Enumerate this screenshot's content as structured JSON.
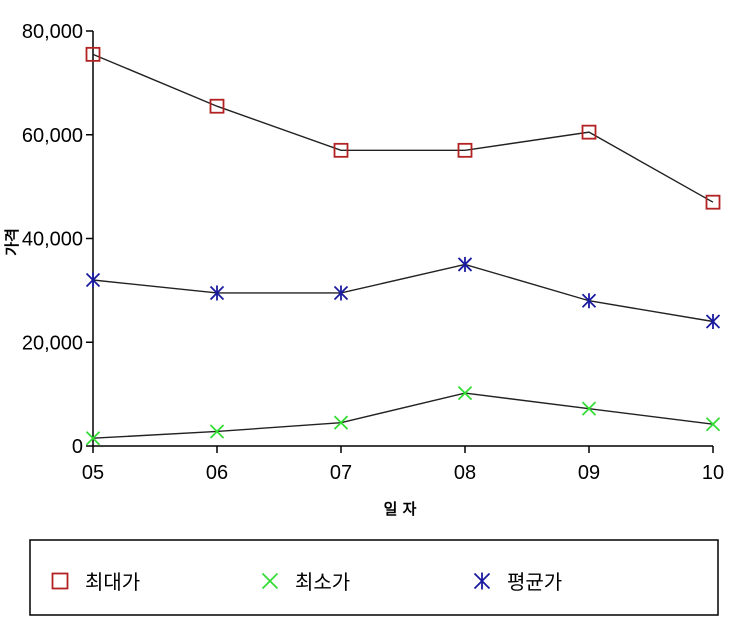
{
  "chart_data": {
    "type": "line",
    "xlabel": "일 자",
    "ylabel": "가격",
    "categories": [
      "05",
      "06",
      "07",
      "08",
      "09",
      "10"
    ],
    "ylim": [
      0,
      80000
    ],
    "yticks": [
      0,
      20000,
      40000,
      60000,
      80000
    ],
    "ytick_labels": [
      "0",
      "20,000",
      "40,000",
      "60,000",
      "80,000"
    ],
    "grid": false,
    "legend_position": "bottom",
    "series": [
      {
        "name": "최대가",
        "marker": "square",
        "color": "#b22222",
        "values": [
          75500,
          65500,
          57000,
          57000,
          60500,
          47000
        ]
      },
      {
        "name": "최소가",
        "marker": "x",
        "color": "#33dd33",
        "values": [
          1500,
          2800,
          4500,
          10200,
          7200,
          4200
        ]
      },
      {
        "name": "평균가",
        "marker": "asterisk",
        "color": "#1a1aa0",
        "values": [
          32000,
          29500,
          29500,
          35000,
          28000,
          24000
        ]
      }
    ]
  }
}
